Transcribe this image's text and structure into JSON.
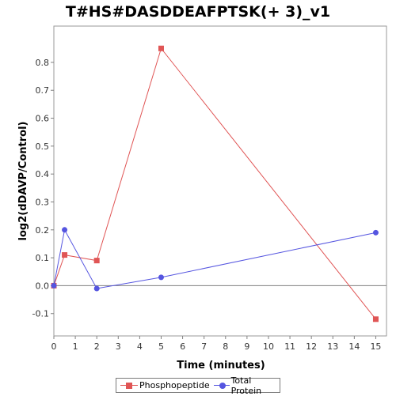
{
  "chart_data": {
    "type": "line",
    "title": "T#HS#DASDDEAFPTSK(+ 3)_v1",
    "xlabel": "Time (minutes)",
    "ylabel": "log2(dDAVP/Control)",
    "xlim": [
      0,
      15.5
    ],
    "ylim": [
      -0.18,
      0.93
    ],
    "xticks": [
      0,
      1,
      2,
      3,
      4,
      5,
      6,
      7,
      8,
      9,
      10,
      11,
      12,
      13,
      14,
      15
    ],
    "yticks": [
      -0.1,
      0.0,
      0.1,
      0.2,
      0.3,
      0.4,
      0.5,
      0.6,
      0.7,
      0.8
    ],
    "ytick_labels": [
      "-0.1",
      "0.0",
      "0.1",
      "0.2",
      "0.3",
      "0.4",
      "0.5",
      "0.6",
      "0.7",
      "0.8"
    ],
    "zero_line": true,
    "grid": false,
    "legend_position": "bottom",
    "series": [
      {
        "name": "Phosphopeptide",
        "color": "#e05555",
        "marker": "square",
        "x": [
          0,
          0.5,
          2,
          5,
          15
        ],
        "y": [
          0.0,
          0.11,
          0.09,
          0.85,
          -0.12
        ]
      },
      {
        "name": "Total Protein",
        "color": "#5555e0",
        "marker": "circle",
        "x": [
          0,
          0.5,
          2,
          5,
          15
        ],
        "y": [
          0.0,
          0.2,
          -0.01,
          0.03,
          0.19
        ]
      }
    ]
  }
}
